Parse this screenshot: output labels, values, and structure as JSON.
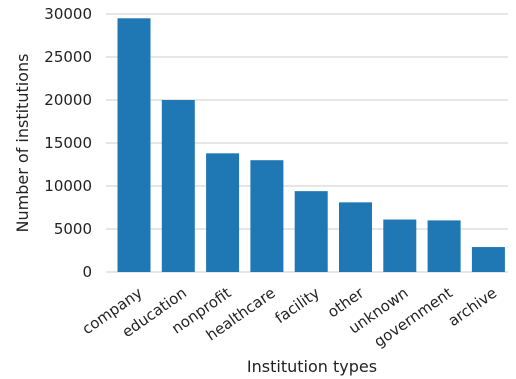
{
  "chart_data": {
    "type": "bar",
    "categories": [
      "company",
      "education",
      "nonprofit",
      "healthcare",
      "facility",
      "other",
      "unknown",
      "government",
      "archive"
    ],
    "values": [
      29500,
      20000,
      13800,
      13000,
      9400,
      8100,
      6100,
      6000,
      2900
    ],
    "title": "",
    "xlabel": "Institution types",
    "ylabel": "Number of institutions",
    "ylim": [
      0,
      30000
    ],
    "yticks": [
      0,
      5000,
      10000,
      15000,
      20000,
      25000,
      30000
    ],
    "grid": true,
    "bar_color": "#1f77b4",
    "grid_color": "#cccccc"
  }
}
